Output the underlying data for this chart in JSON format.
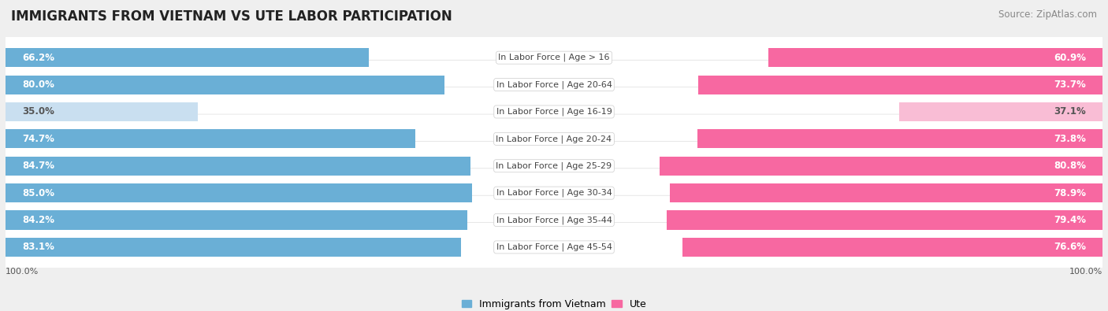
{
  "title": "IMMIGRANTS FROM VIETNAM VS UTE LABOR PARTICIPATION",
  "source": "Source: ZipAtlas.com",
  "categories": [
    "In Labor Force | Age > 16",
    "In Labor Force | Age 20-64",
    "In Labor Force | Age 16-19",
    "In Labor Force | Age 20-24",
    "In Labor Force | Age 25-29",
    "In Labor Force | Age 30-34",
    "In Labor Force | Age 35-44",
    "In Labor Force | Age 45-54"
  ],
  "vietnam_values": [
    66.2,
    80.0,
    35.0,
    74.7,
    84.7,
    85.0,
    84.2,
    83.1
  ],
  "ute_values": [
    60.9,
    73.7,
    37.1,
    73.8,
    80.8,
    78.9,
    79.4,
    76.6
  ],
  "vietnam_color_full": "#6aafd6",
  "vietnam_color_light": "#c9dff0",
  "ute_color_full": "#f768a1",
  "ute_color_light": "#f9bdd5",
  "label_color_full": "#ffffff",
  "label_color_light": "#555555",
  "background_color": "#efefef",
  "row_bg_color": "#ffffff",
  "center_label_bg": "#ffffff",
  "center_label_color": "#444444",
  "title_fontsize": 12,
  "source_fontsize": 8.5,
  "bar_label_fontsize": 8.5,
  "category_fontsize": 8,
  "legend_fontsize": 9,
  "axis_label_fontsize": 8,
  "threshold": 50.0
}
